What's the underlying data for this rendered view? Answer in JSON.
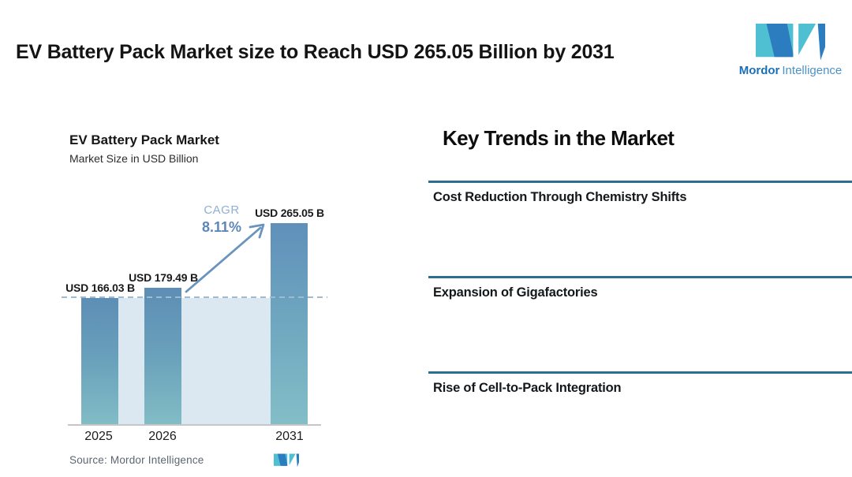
{
  "header": {
    "title": "EV Battery Pack Market size to Reach USD 265.05 Billion by 2031"
  },
  "brand": {
    "name_primary": "Mordor",
    "name_secondary": "Intelligence"
  },
  "chart_data": {
    "type": "bar",
    "title": "EV Battery Pack Market",
    "subtitle": "Market Size in USD Billion",
    "categories": [
      "2025",
      "2026",
      "2031"
    ],
    "values": [
      166.03,
      179.49,
      265.05
    ],
    "bar_labels": [
      "USD 166.03 B",
      "USD 179.49 B",
      "USD 265.05 B"
    ],
    "unit": "USD Billion",
    "ylim": [
      0,
      280
    ],
    "grid": false,
    "cagr_label": "CAGR",
    "cagr_value": "8.11%",
    "reference_line": {
      "style": "dashed",
      "at": 166.03
    },
    "source": "Source: Mordor Intelligence"
  },
  "trends": {
    "heading": "Key Trends in the Market",
    "items": [
      "Cost Reduction Through Chemistry Shifts",
      "Expansion of Gigafactories",
      "Rise of Cell-to-Pack Integration"
    ]
  },
  "colors": {
    "bar_gradient_top": "#5d8eb5",
    "bar_gradient_bottom": "#82bcc5",
    "below_reference_shade": "#dce8f1",
    "dashed_reference": "#9fbbd4",
    "cagr_value_text": "#5d87b9",
    "cagr_label_text": "#8fb0d3",
    "trend_divider": "#2d6e91",
    "logo_blue": "#2b7dbf",
    "logo_teal": "#4fc0d2"
  }
}
